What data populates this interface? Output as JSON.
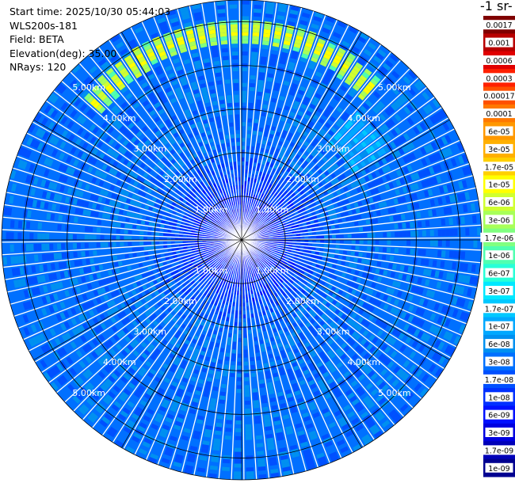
{
  "chart_data": {
    "type": "heatmap",
    "subtype": "polar-ppi",
    "info": {
      "start_time": "Start time: 2025/10/30 05:44:03",
      "instrument": "WLS200s-181",
      "field": "Field: BETA",
      "elevation": "Elevation(deg): 35.00",
      "nrays": "NRays: 120"
    },
    "colorbar_title": "-1 sr-",
    "colorbar_levels": [
      "0.0017",
      "0.001",
      "0.0006",
      "0.0003",
      "0.00017",
      "0.0001",
      "6e-05",
      "3e-05",
      "1.7e-05",
      "1e-05",
      "6e-06",
      "3e-06",
      "1.7e-06",
      "1e-06",
      "6e-07",
      "3e-07",
      "1.7e-07",
      "1e-07",
      "6e-08",
      "3e-08",
      "1.7e-08",
      "1e-08",
      "6e-09",
      "3e-09",
      "1.7e-09",
      "1e-09"
    ],
    "colorbar_colors": [
      "#800000",
      "#b80000",
      "#e00000",
      "#ff2000",
      "#ff5000",
      "#ff7800",
      "#ff9800",
      "#ffb000",
      "#ffd000",
      "#ffff00",
      "#d0ff30",
      "#a8ff58",
      "#80ff80",
      "#50ffb0",
      "#28ffd8",
      "#00e8ff",
      "#00c8ff",
      "#00a8ff",
      "#0090f0",
      "#0070ff",
      "#0050ff",
      "#0030ff",
      "#0010ff",
      "#0000e0",
      "#0000b8",
      "#000090"
    ],
    "range_labels": [
      "1.00km",
      "2.00km",
      "3.00km",
      "4.00km",
      "5.00km"
    ],
    "range_rings_km": [
      1,
      2,
      3,
      4,
      5
    ],
    "max_range_km": 5.5,
    "rays": 120,
    "features": [
      {
        "name": "high-backscatter-arc",
        "level": "1e-05",
        "range_km": [
          4.0,
          5.0
        ],
        "azimuth_deg": [
          -50,
          40
        ]
      },
      {
        "name": "moderate-arc-extension",
        "level": "1.7e-07",
        "range_km": [
          3.0,
          4.0
        ],
        "azimuth_deg": [
          40,
          60
        ]
      }
    ],
    "background_level": "3e-08",
    "near_range_level": "3e-09"
  }
}
